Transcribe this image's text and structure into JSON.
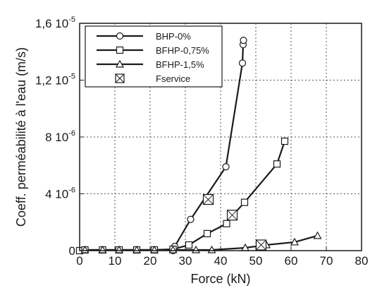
{
  "chart_data": {
    "type": "line",
    "xlabel": "Force (kN)",
    "ylabel": "Coeff. perméabilité à l'eau (m/s)",
    "xlim": [
      0,
      80
    ],
    "ylim": [
      0,
      1.6e-05
    ],
    "xticks": [
      0,
      10,
      20,
      30,
      40,
      50,
      60,
      70,
      80
    ],
    "yticks": [
      {
        "value": 0,
        "mantissa": "0",
        "exp": ""
      },
      {
        "value": 4e-06,
        "mantissa": "4 10",
        "exp": "-6"
      },
      {
        "value": 8e-06,
        "mantissa": "8 10",
        "exp": "-6"
      },
      {
        "value": 1.2e-05,
        "mantissa": "1,2 10",
        "exp": "-5"
      },
      {
        "value": 1.6e-05,
        "mantissa": "1,6 10",
        "exp": "-5"
      }
    ],
    "grid": "dotted",
    "legend_position": "top-left",
    "series": [
      {
        "name": "BHP-0%",
        "marker": "circle",
        "x": [
          26.5,
          27,
          31.5,
          41.5,
          46.2,
          46.4,
          46.5
        ],
        "y": [
          0,
          3e-07,
          2.2e-06,
          5.9e-06,
          1.32e-05,
          1.45e-05,
          1.48e-05
        ]
      },
      {
        "name": "BFHP-0,75%",
        "marker": "square",
        "x": [
          0,
          1.5,
          6.5,
          11.2,
          16.2,
          21.2,
          26.5,
          31,
          36.2,
          41.7,
          43.5,
          46.8,
          56,
          58.2
        ],
        "y": [
          0,
          5e-08,
          5e-08,
          5e-08,
          5e-08,
          5e-08,
          1e-07,
          4e-07,
          1.2e-06,
          1.9e-06,
          2.5e-06,
          3.4e-06,
          6.1e-06,
          7.7e-06
        ]
      },
      {
        "name": "BFHP-1,5%",
        "marker": "triangle",
        "x": [
          1.5,
          6.5,
          11.2,
          16.2,
          21.2,
          26.5,
          33,
          37.5,
          47,
          53,
          61,
          67.5
        ],
        "y": [
          5e-08,
          5e-08,
          5e-08,
          5e-08,
          5e-08,
          5e-08,
          5e-08,
          5e-08,
          2e-07,
          4e-07,
          6e-07,
          1.05e-06
        ]
      },
      {
        "name": "Fservice",
        "marker": "square-x",
        "x": [
          36.5,
          43.3,
          51.5
        ],
        "y": [
          3.6e-06,
          2.5e-06,
          4e-07
        ]
      }
    ]
  },
  "colors": {
    "line": "#1a1a1a",
    "grid": "#555555",
    "marker_fill": "#ffffff"
  }
}
